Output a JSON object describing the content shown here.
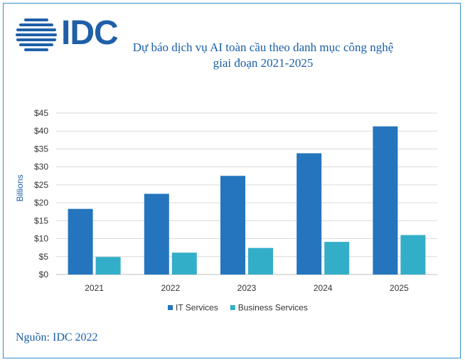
{
  "logo": {
    "text": "IDC",
    "icon": "globe-stripes-icon",
    "color": "#1f5fa8"
  },
  "title_lines": [
    "Dự báo dịch vụ AI toàn cầu theo danh mục công nghệ",
    "giai đoạn 2021-2025"
  ],
  "source": "Nguồn: IDC 2022",
  "chart_data": {
    "type": "bar",
    "categories": [
      "2021",
      "2022",
      "2023",
      "2024",
      "2025"
    ],
    "series": [
      {
        "name": "IT Services",
        "values": [
          18.3,
          22.5,
          27.5,
          33.8,
          41.3
        ],
        "color": "#2475bd"
      },
      {
        "name": "Business Services",
        "values": [
          4.9,
          6.1,
          7.4,
          9.1,
          11.0
        ],
        "color": "#33aec8"
      }
    ],
    "ylabel": "Billions",
    "ylim": [
      0,
      45
    ],
    "yticks": [
      "$0",
      "$5",
      "$10",
      "$15",
      "$20",
      "$25",
      "$30",
      "$35",
      "$40",
      "$45"
    ],
    "grid": true,
    "legend_position": "bottom"
  }
}
